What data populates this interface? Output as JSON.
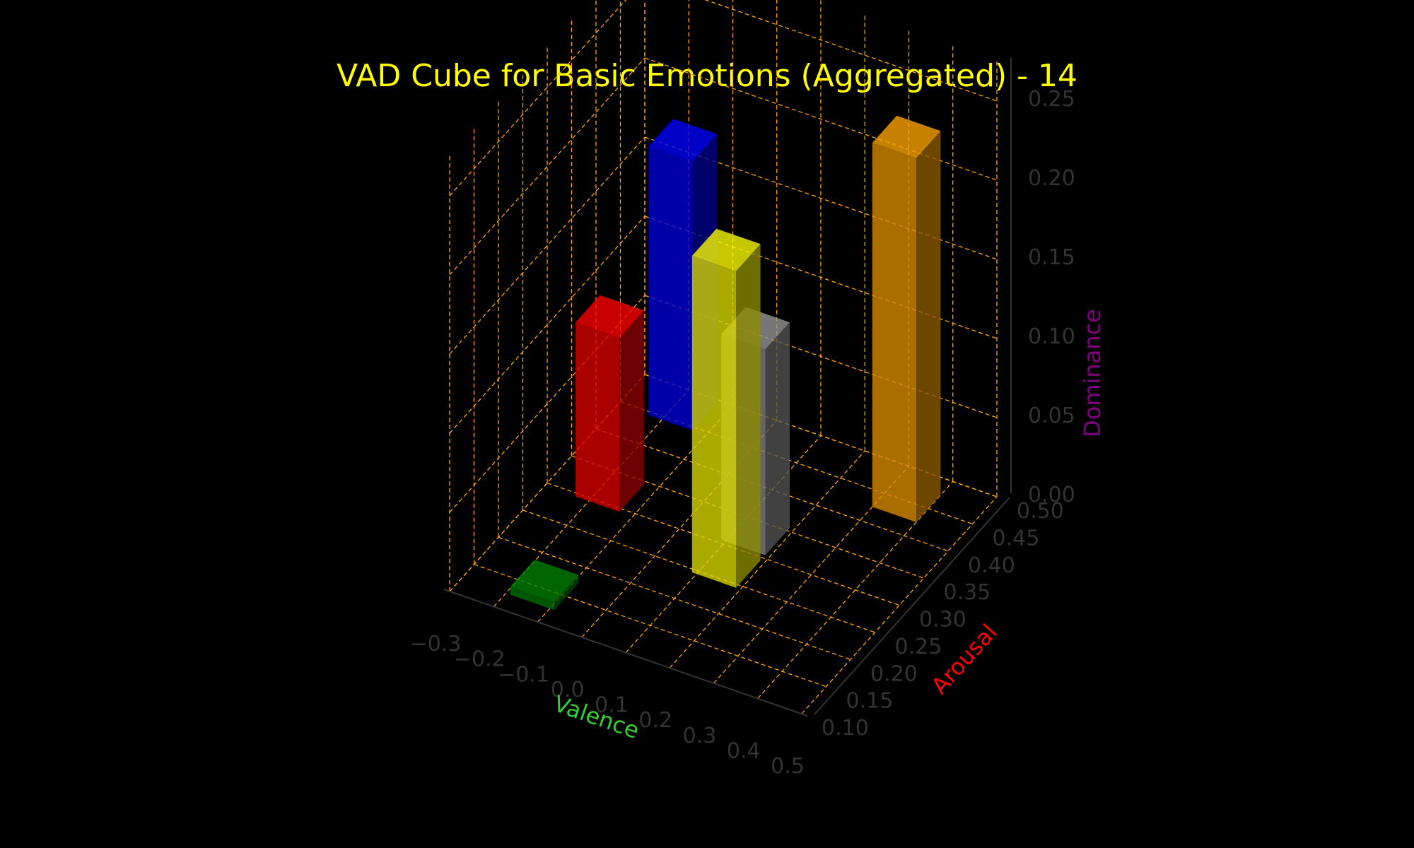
{
  "chart_data": {
    "type": "bar3d",
    "title": "VAD Cube for Basic Emotions (Aggregated) - 14",
    "xlabel": "Valence",
    "ylabel": "Arousal",
    "zlabel": "Dominance",
    "xlim": [
      -0.3,
      0.5
    ],
    "ylim": [
      0.1,
      0.5
    ],
    "zlim": [
      0.0,
      0.25
    ],
    "xticks": [
      "−0.3",
      "−0.2",
      "−0.1",
      "0.0",
      "0.1",
      "0.2",
      "0.3",
      "0.4",
      "0.5"
    ],
    "yticks": [
      "0.10",
      "0.15",
      "0.20",
      "0.25",
      "0.30",
      "0.35",
      "0.40",
      "0.45",
      "0.50"
    ],
    "zticks": [
      "0.00",
      "0.05",
      "0.10",
      "0.15",
      "0.20",
      "0.25"
    ],
    "grid": true,
    "bars": [
      {
        "color": "#0000ff",
        "valence": -0.18,
        "arousal": 0.47,
        "dominance": 0.17
      },
      {
        "color": "#ff0000",
        "valence": -0.18,
        "arousal": 0.32,
        "dominance": 0.11
      },
      {
        "color": "#008000",
        "valence": -0.14,
        "arousal": 0.15,
        "dominance": 0.005
      },
      {
        "color": "#999999",
        "valence": 0.14,
        "arousal": 0.33,
        "dominance": 0.13
      },
      {
        "color": "#ffff00",
        "valence": 0.14,
        "arousal": 0.27,
        "dominance": 0.2
      },
      {
        "color": "#ffa500",
        "valence": 0.35,
        "arousal": 0.45,
        "dominance": 0.23
      }
    ],
    "colors": {
      "background": "#000000",
      "title": "#ffff00",
      "grid": "#ffa500",
      "tick_label": "#333333",
      "xlabel": "#32cd32",
      "ylabel": "#ff0000",
      "zlabel": "#800080"
    }
  }
}
